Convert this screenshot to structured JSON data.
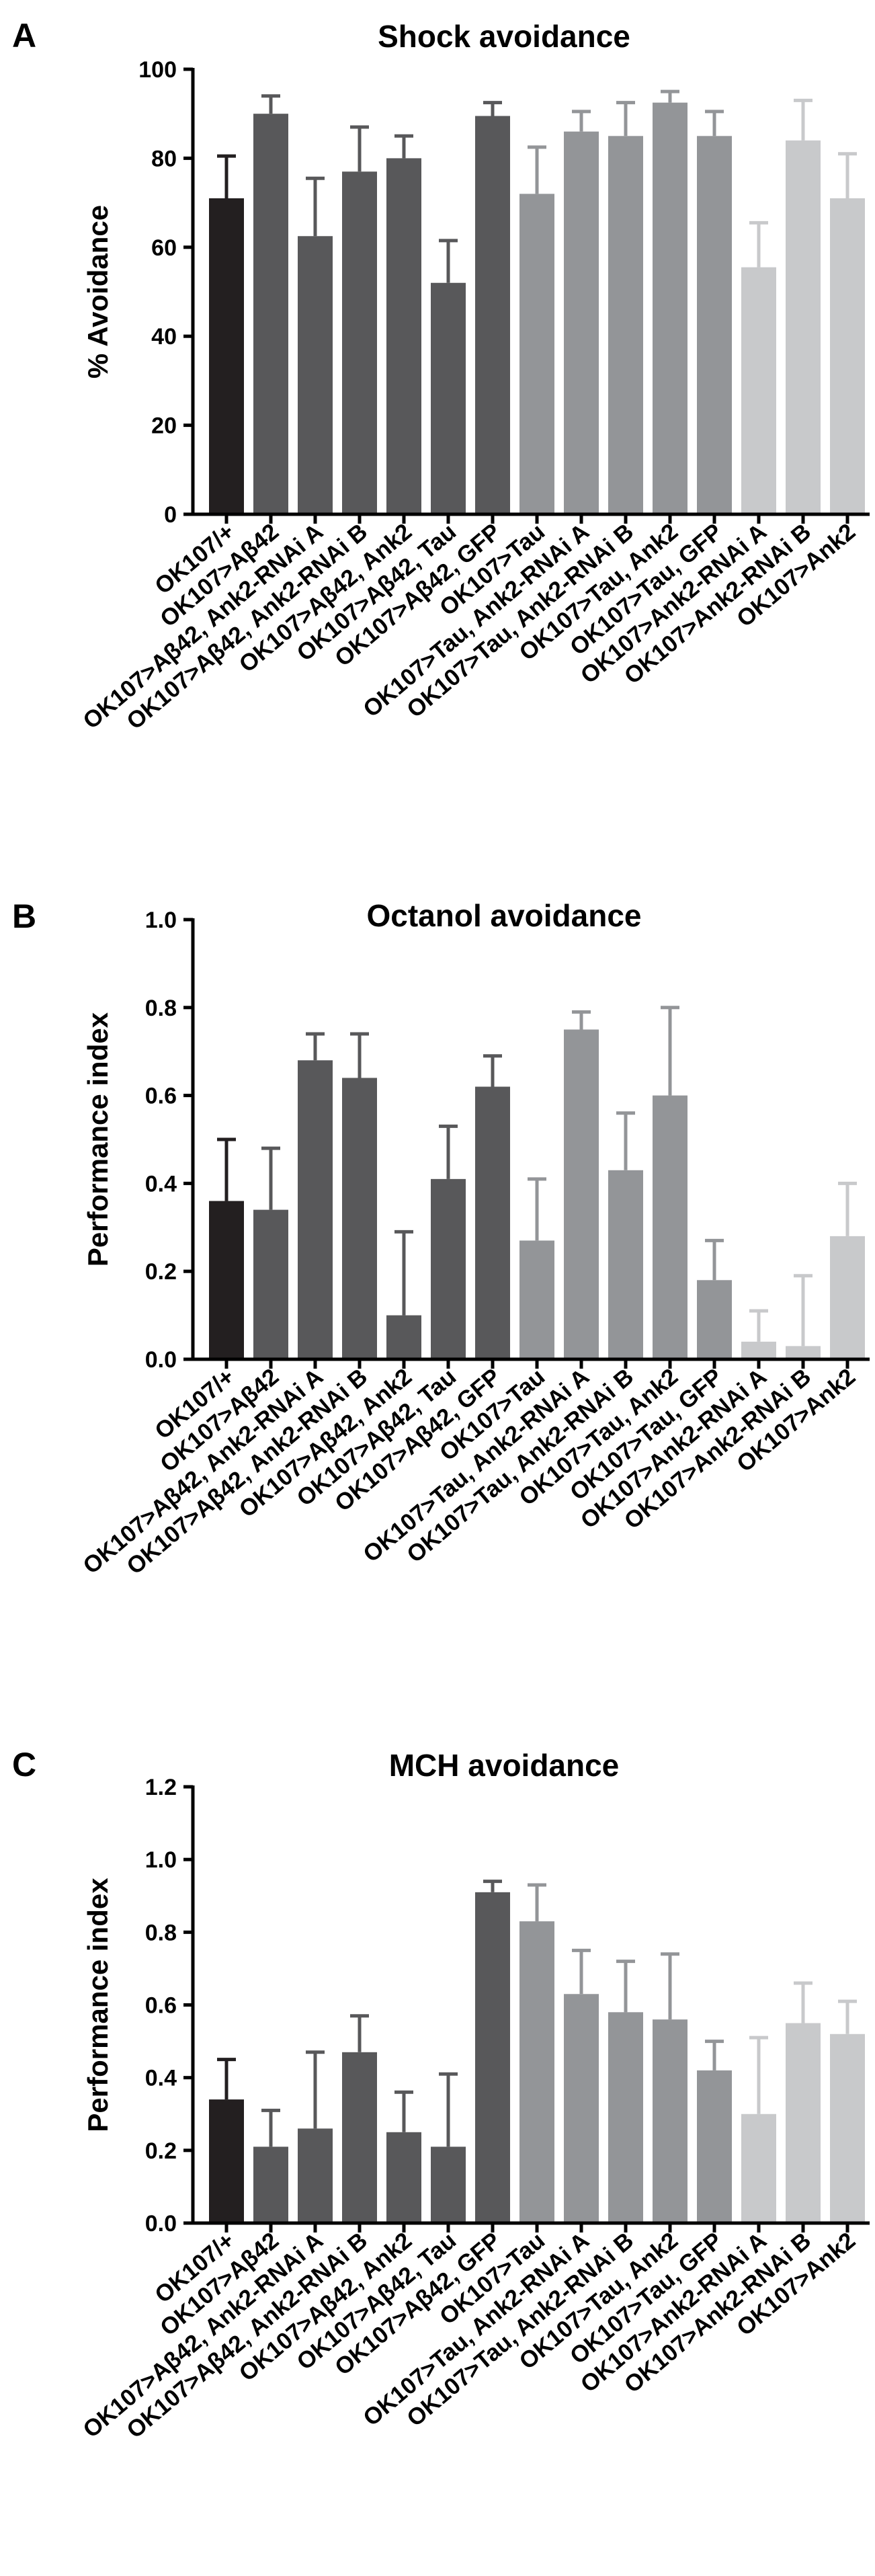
{
  "panel_letters": [
    "A",
    "B",
    "C"
  ],
  "colors": {
    "black": "#231f20",
    "dark_gray": "#58585a",
    "mid_gray": "#939598",
    "light_gray": "#c8c9cb",
    "axis": "#000000"
  },
  "categories": [
    "OK107/+",
    "OK107>Aβ42",
    "OK107>Aβ42, Ank2-RNAi A",
    "OK107>Aβ42, Ank2-RNAi B",
    "OK107>Aβ42, Ank2",
    "OK107>Aβ42, Tau",
    "OK107>Aβ42, GFP",
    "OK107>Tau",
    "OK107>Tau, Ank2-RNAi A",
    "OK107>Tau, Ank2-RNAi B",
    "OK107>Tau, Ank2",
    "OK107>Tau, GFP",
    "OK107>Ank2-RNAi A",
    "OK107>Ank2-RNAi B",
    "OK107>Ank2"
  ],
  "bar_color_keys": [
    "black",
    "dark_gray",
    "dark_gray",
    "dark_gray",
    "dark_gray",
    "dark_gray",
    "dark_gray",
    "mid_gray",
    "mid_gray",
    "mid_gray",
    "mid_gray",
    "mid_gray",
    "light_gray",
    "light_gray",
    "light_gray"
  ],
  "chart_data": [
    {
      "type": "bar",
      "panel": "A",
      "title": "Shock avoidance",
      "ylabel": "% Avoidance",
      "xlabel": "",
      "ylim": [
        0,
        100
      ],
      "yticks": [
        "0",
        "20",
        "40",
        "60",
        "80",
        "100"
      ],
      "values": [
        71,
        90,
        62.5,
        77,
        80,
        52,
        89.5,
        72,
        86,
        85,
        92.5,
        85,
        55.5,
        84,
        71
      ],
      "errors": [
        9.5,
        4,
        13,
        10,
        5,
        9.5,
        3,
        10.5,
        4.5,
        7.5,
        2.5,
        5.5,
        10,
        9,
        10
      ]
    },
    {
      "type": "bar",
      "panel": "B",
      "title": "Octanol avoidance",
      "ylabel": "Performance index",
      "xlabel": "",
      "ylim": [
        0,
        1.0
      ],
      "yticks": [
        "0.0",
        "0.2",
        "0.4",
        "0.6",
        "0.8",
        "1.0"
      ],
      "values": [
        0.36,
        0.34,
        0.68,
        0.64,
        0.1,
        0.41,
        0.62,
        0.27,
        0.75,
        0.43,
        0.6,
        0.18,
        0.04,
        0.03,
        0.28
      ],
      "errors": [
        0.14,
        0.14,
        0.06,
        0.1,
        0.19,
        0.12,
        0.07,
        0.14,
        0.04,
        0.13,
        0.2,
        0.09,
        0.07,
        0.16,
        0.12
      ]
    },
    {
      "type": "bar",
      "panel": "C",
      "title": "MCH avoidance",
      "ylabel": "Performance index",
      "xlabel": "",
      "ylim": [
        0,
        1.2
      ],
      "yticks": [
        "0.0",
        "0.2",
        "0.4",
        "0.6",
        "0.8",
        "1.0",
        "1.2"
      ],
      "values": [
        0.34,
        0.21,
        0.26,
        0.47,
        0.25,
        0.21,
        0.91,
        0.83,
        0.63,
        0.58,
        0.56,
        0.42,
        0.3,
        0.55,
        0.52
      ],
      "errors": [
        0.11,
        0.1,
        0.21,
        0.1,
        0.11,
        0.2,
        0.03,
        0.1,
        0.12,
        0.14,
        0.18,
        0.08,
        0.21,
        0.11,
        0.09
      ]
    }
  ]
}
